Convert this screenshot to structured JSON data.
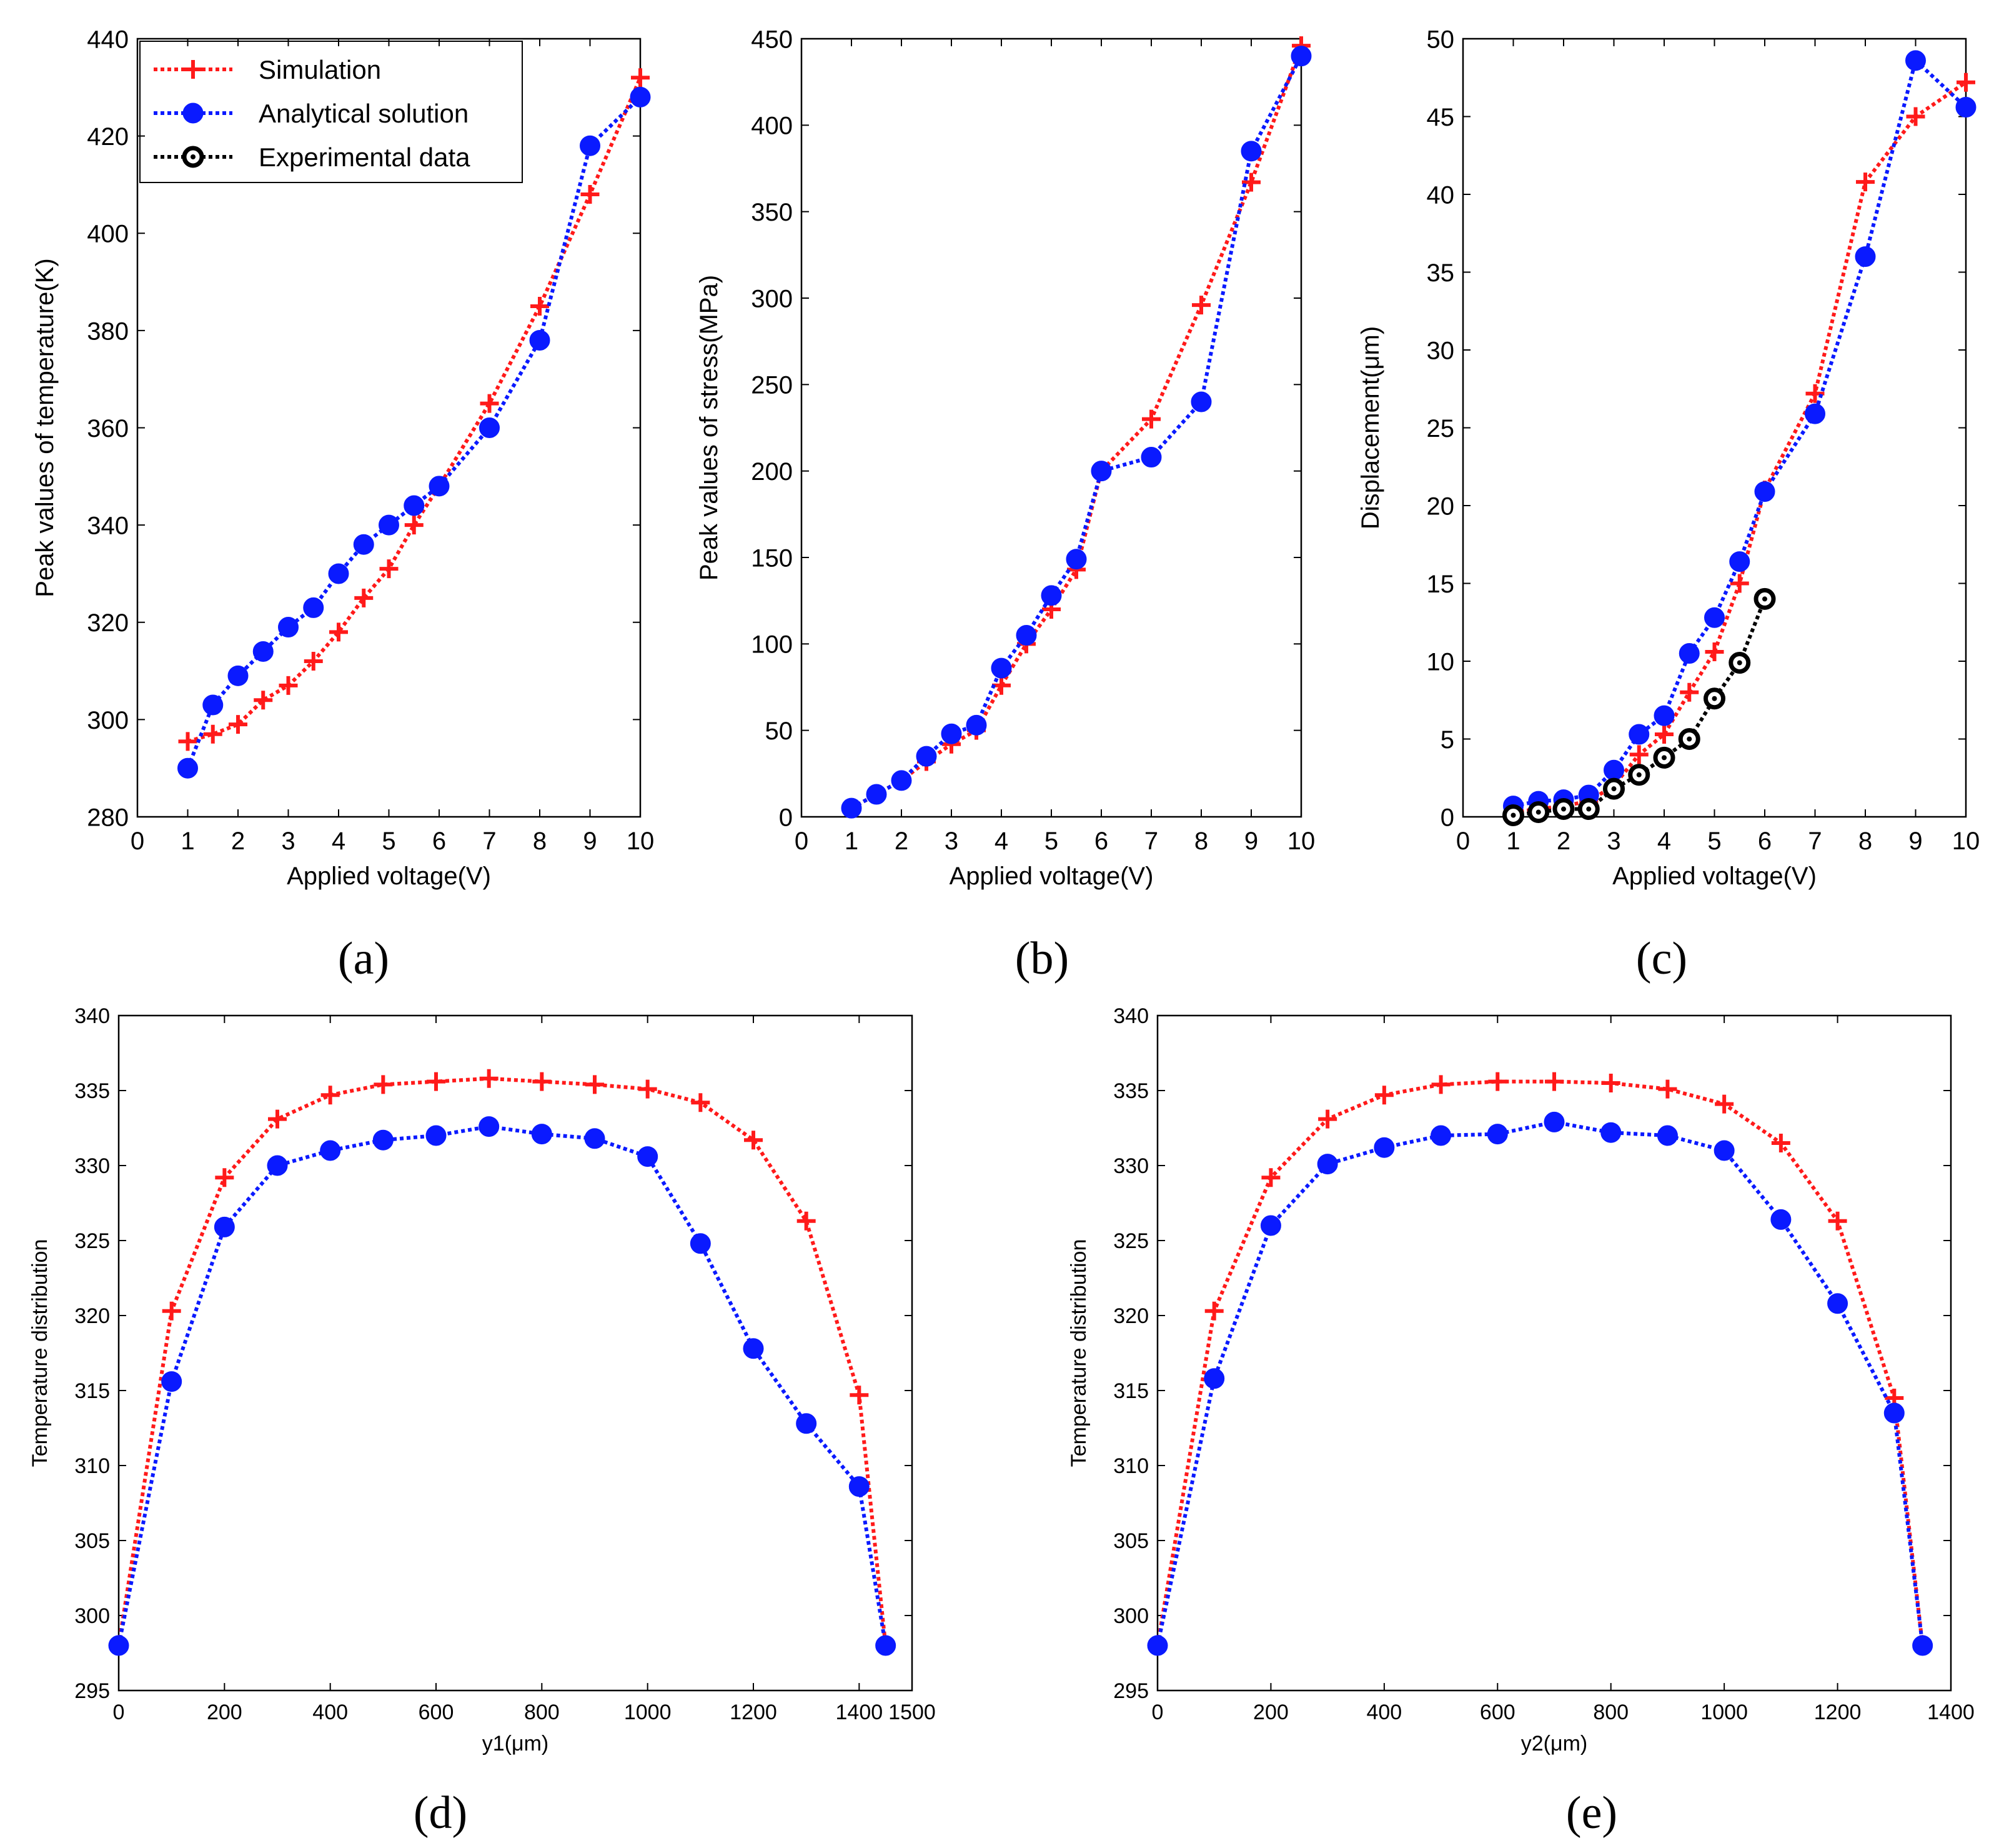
{
  "colors": {
    "simulation": "#ff1a1a",
    "analytical": "#0a1aff",
    "experimental": "#000000"
  },
  "legend_labels": {
    "simulation": "Simulation",
    "analytical": "Analytical solution",
    "experimental": "Experimental data"
  },
  "chart_data": [
    {
      "id": "a",
      "panel_label": "(a)",
      "type": "line",
      "xlabel": "Applied voltage(V)",
      "ylabel": "Peak values of temperature(K)",
      "xlim": [
        0,
        10
      ],
      "ylim": [
        280,
        440
      ],
      "xticks": [
        0,
        1,
        2,
        3,
        4,
        5,
        6,
        7,
        8,
        9,
        10
      ],
      "yticks": [
        280,
        300,
        320,
        340,
        360,
        380,
        400,
        420,
        440
      ],
      "legend": "top-left",
      "series": [
        {
          "name": "Simulation",
          "key": "simulation",
          "marker": "plus",
          "x": [
            1,
            1.5,
            2,
            2.5,
            3,
            3.5,
            4,
            4.5,
            5,
            5.5,
            6,
            7,
            8,
            9,
            10
          ],
          "y": [
            295.5,
            297,
            299,
            304,
            307,
            312,
            318,
            325,
            331,
            340,
            348,
            365,
            385,
            408,
            432
          ]
        },
        {
          "name": "Analytical solution",
          "key": "analytical",
          "marker": "dot",
          "x": [
            1,
            1.5,
            2,
            2.5,
            3,
            3.5,
            4,
            4.5,
            5,
            5.5,
            6,
            7,
            8,
            9,
            10
          ],
          "y": [
            290,
            303,
            309,
            314,
            319,
            323,
            330,
            336,
            340,
            344,
            348,
            360,
            378,
            418,
            428
          ]
        }
      ]
    },
    {
      "id": "b",
      "panel_label": "(b)",
      "type": "line",
      "xlabel": "Applied voltage(V)",
      "ylabel": "Peak values of stress(MPa)",
      "xlim": [
        0,
        10
      ],
      "ylim": [
        0,
        450
      ],
      "xticks": [
        0,
        1,
        2,
        3,
        4,
        5,
        6,
        7,
        8,
        9,
        10
      ],
      "yticks": [
        0,
        50,
        100,
        150,
        200,
        250,
        300,
        350,
        400,
        450
      ],
      "series": [
        {
          "name": "Simulation",
          "key": "simulation",
          "marker": "plus",
          "x": [
            1,
            1.5,
            2,
            2.5,
            3,
            3.5,
            4,
            4.5,
            5,
            5.5,
            6,
            7,
            8,
            9,
            10
          ],
          "y": [
            5,
            13,
            21,
            32,
            42,
            50,
            76,
            100,
            120,
            143,
            200,
            230,
            296,
            367,
            446
          ]
        },
        {
          "name": "Analytical solution",
          "key": "analytical",
          "marker": "dot",
          "x": [
            1,
            1.5,
            2,
            2.5,
            3,
            3.5,
            4,
            4.5,
            5,
            5.5,
            6,
            7,
            8,
            9,
            10
          ],
          "y": [
            5,
            13,
            21,
            35,
            48,
            53,
            86,
            105,
            128,
            149,
            200,
            208,
            240,
            385,
            440
          ]
        }
      ]
    },
    {
      "id": "c",
      "panel_label": "(c)",
      "type": "line",
      "xlabel": "Applied voltage(V)",
      "ylabel": "Displacement(μm)",
      "xlim": [
        0,
        10
      ],
      "ylim": [
        0,
        50
      ],
      "xticks": [
        0,
        1,
        2,
        3,
        4,
        5,
        6,
        7,
        8,
        9,
        10
      ],
      "yticks": [
        0,
        5,
        10,
        15,
        20,
        25,
        30,
        35,
        40,
        45,
        50
      ],
      "series": [
        {
          "name": "Simulation",
          "key": "simulation",
          "marker": "plus",
          "x": [
            1,
            1.5,
            2,
            2.5,
            3,
            3.5,
            4,
            4.5,
            5,
            5.5,
            6,
            7,
            8,
            9,
            10
          ],
          "y": [
            0.3,
            0.5,
            0.7,
            1.0,
            2.0,
            4.0,
            5.3,
            8.0,
            10.6,
            15.0,
            21.0,
            27.2,
            40.8,
            45.0,
            47.2
          ]
        },
        {
          "name": "Analytical solution",
          "key": "analytical",
          "marker": "dot",
          "x": [
            1,
            1.5,
            2,
            2.5,
            3,
            3.5,
            4,
            4.5,
            5,
            5.5,
            6,
            7,
            8,
            9,
            10
          ],
          "y": [
            0.7,
            1.0,
            1.1,
            1.4,
            3.0,
            5.3,
            6.5,
            10.5,
            12.8,
            16.4,
            20.9,
            25.9,
            36.0,
            48.6,
            45.6
          ]
        },
        {
          "name": "Experimental data",
          "key": "experimental",
          "marker": "ring",
          "x": [
            1,
            1.5,
            2,
            2.5,
            3,
            3.5,
            4,
            4.5,
            5,
            5.5,
            6
          ],
          "y": [
            0.1,
            0.3,
            0.5,
            0.5,
            1.8,
            2.7,
            3.8,
            5.0,
            7.6,
            9.9,
            14.0
          ]
        }
      ]
    },
    {
      "id": "d",
      "panel_label": "(d)",
      "type": "line",
      "xlabel": "y1(μm)",
      "ylabel": "Temperature distribution",
      "xlim": [
        0,
        1500
      ],
      "ylim": [
        295,
        340
      ],
      "xticks": [
        0,
        200,
        400,
        600,
        800,
        1000,
        1200,
        1400,
        1500
      ],
      "xtick_labels": [
        "0",
        "200",
        "400",
        "600",
        "800",
        "1000",
        "1200",
        "1400",
        "1500"
      ],
      "yticks": [
        295,
        300,
        305,
        310,
        315,
        320,
        325,
        330,
        335,
        340
      ],
      "series": [
        {
          "name": "Simulation",
          "key": "simulation",
          "marker": "plus",
          "x": [
            0,
            100,
            200,
            300,
            400,
            500,
            600,
            700,
            800,
            900,
            1000,
            1100,
            1200,
            1300,
            1400,
            1450
          ],
          "y": [
            298,
            320.3,
            329.2,
            333.1,
            334.7,
            335.4,
            335.6,
            335.8,
            335.6,
            335.4,
            335.1,
            334.2,
            331.7,
            326.3,
            314.7,
            298
          ]
        },
        {
          "name": "Analytical solution",
          "key": "analytical",
          "marker": "dot",
          "x": [
            0,
            100,
            200,
            300,
            400,
            500,
            600,
            700,
            800,
            900,
            1000,
            1100,
            1200,
            1300,
            1400,
            1450
          ],
          "y": [
            298,
            315.6,
            325.9,
            330,
            331,
            331.7,
            332,
            332.6,
            332.1,
            331.8,
            330.6,
            324.8,
            317.8,
            312.8,
            308.6,
            298
          ]
        }
      ]
    },
    {
      "id": "e",
      "panel_label": "(e)",
      "type": "line",
      "xlabel": "y2(μm)",
      "ylabel": "Temperature distribution",
      "xlim": [
        0,
        1400
      ],
      "ylim": [
        295,
        340
      ],
      "xticks": [
        0,
        200,
        400,
        600,
        800,
        1000,
        1200,
        1400
      ],
      "xtick_labels": [
        "0",
        "200",
        "400",
        "600",
        "800",
        "1000",
        "1200",
        "1400"
      ],
      "yticks": [
        295,
        300,
        305,
        310,
        315,
        320,
        325,
        330,
        335,
        340
      ],
      "series": [
        {
          "name": "Simulation",
          "key": "simulation",
          "marker": "plus",
          "x": [
            0,
            100,
            200,
            300,
            400,
            500,
            600,
            700,
            800,
            900,
            1000,
            1100,
            1200,
            1300,
            1350
          ],
          "y": [
            298,
            320.3,
            329.2,
            333.1,
            334.7,
            335.4,
            335.6,
            335.6,
            335.5,
            335.1,
            334.1,
            331.5,
            326.3,
            314.5,
            298
          ]
        },
        {
          "name": "Analytical solution",
          "key": "analytical",
          "marker": "dot",
          "x": [
            0,
            100,
            200,
            300,
            400,
            500,
            600,
            700,
            800,
            900,
            1000,
            1100,
            1200,
            1300,
            1350
          ],
          "y": [
            298,
            315.8,
            326,
            330.1,
            331.2,
            332,
            332.1,
            332.9,
            332.2,
            332,
            331,
            326.4,
            320.8,
            313.5,
            298
          ]
        }
      ]
    }
  ]
}
